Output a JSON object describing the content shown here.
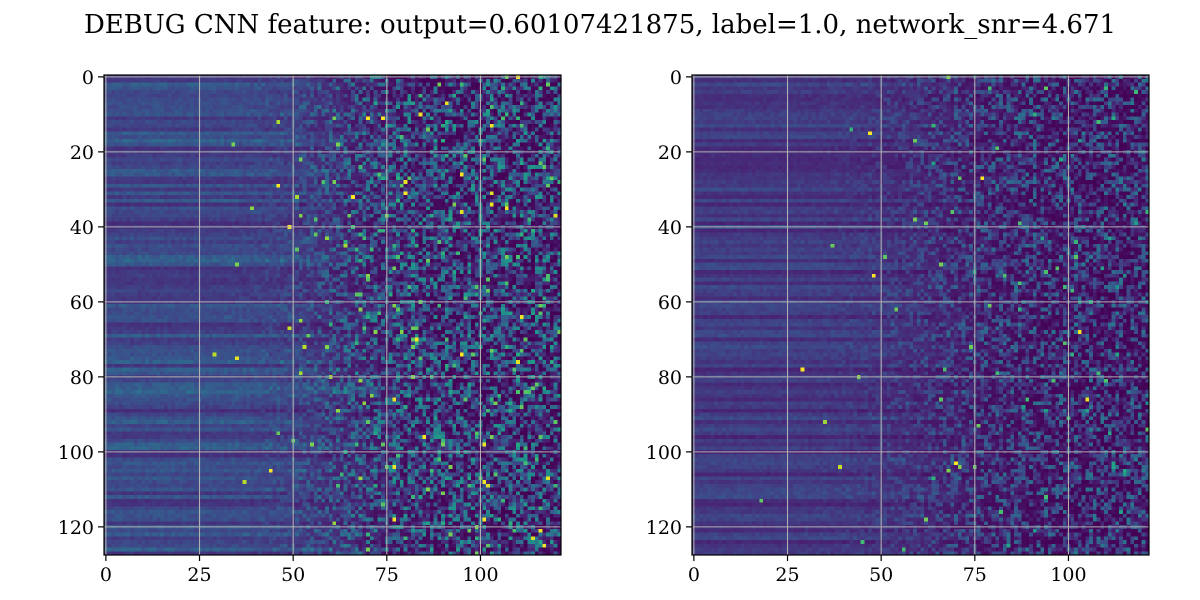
{
  "figure": {
    "title": "DEBUG CNN feature: output=0.60107421875, label=1.0, network_snr=4.671"
  },
  "chart_data": [
    {
      "type": "heatmap",
      "panel": "left",
      "rows": 128,
      "cols": 122,
      "xlim": [
        -0.5,
        121.5
      ],
      "ylim": [
        127.5,
        -0.5
      ],
      "x_ticks": [
        0,
        25,
        50,
        75,
        100
      ],
      "y_ticks": [
        0,
        20,
        40,
        60,
        80,
        100,
        120
      ],
      "x_tick_labels": [
        "0",
        "25",
        "50",
        "75",
        "100"
      ],
      "y_tick_labels": [
        "0",
        "20",
        "40",
        "60",
        "80",
        "100",
        "120"
      ],
      "grid": true,
      "colormap": "viridis",
      "texture": {
        "seed": 1337,
        "stripe_mean": 0.13,
        "stripe_var": 0.2,
        "fade_center": 58,
        "fade_width": 9,
        "noise_exp": 2.1,
        "noise_scale": 0.55,
        "spark_prob": 0.03,
        "spark_min": 0.55,
        "peak_prob": 0.0035
      }
    },
    {
      "type": "heatmap",
      "panel": "right",
      "rows": 128,
      "cols": 122,
      "xlim": [
        -0.5,
        121.5
      ],
      "ylim": [
        127.5,
        -0.5
      ],
      "x_ticks": [
        0,
        25,
        50,
        75,
        100
      ],
      "y_ticks": [
        0,
        20,
        40,
        60,
        80,
        100,
        120
      ],
      "x_tick_labels": [
        "0",
        "25",
        "50",
        "75",
        "100"
      ],
      "y_tick_labels": [
        "0",
        "20",
        "40",
        "60",
        "80",
        "100",
        "120"
      ],
      "grid": true,
      "colormap": "viridis",
      "texture": {
        "seed": 4242,
        "stripe_mean": 0.1,
        "stripe_var": 0.13,
        "fade_center": 62,
        "fade_width": 12,
        "noise_exp": 2.4,
        "noise_scale": 0.42,
        "spark_prob": 0.012,
        "spark_min": 0.5,
        "peak_prob": 0.0008
      }
    }
  ]
}
